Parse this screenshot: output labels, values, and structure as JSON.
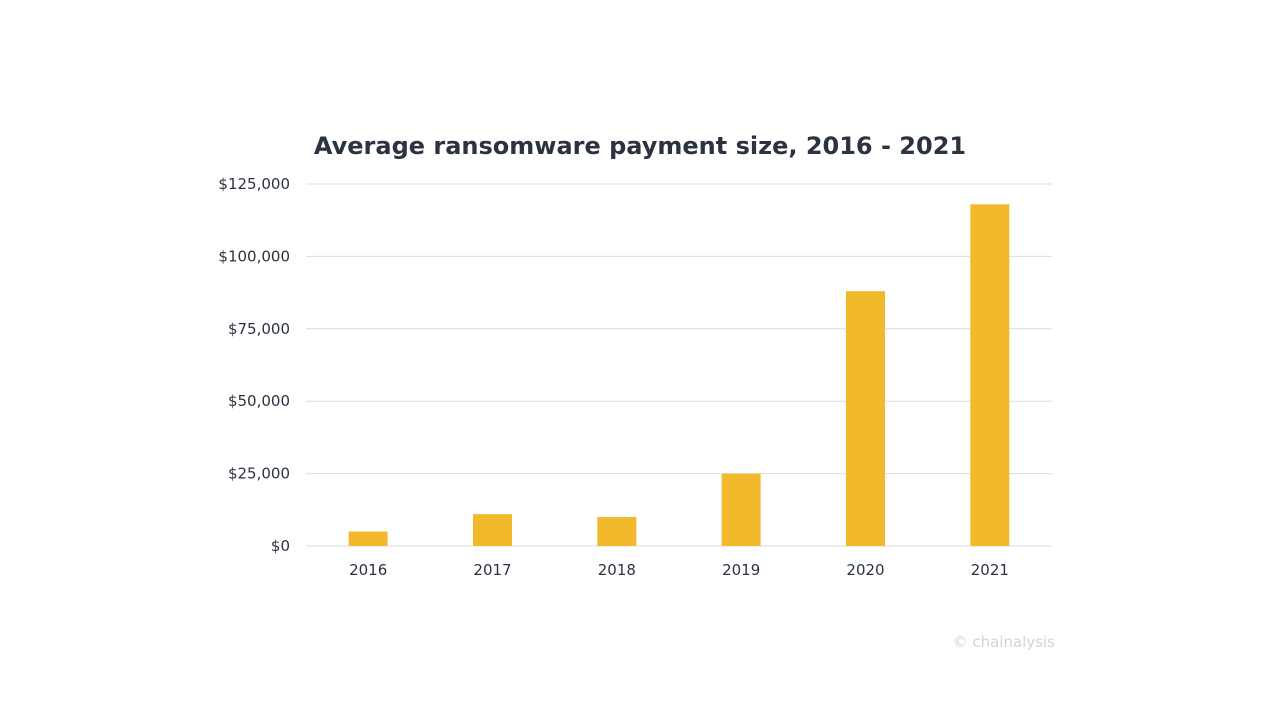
{
  "chart_data": {
    "type": "bar",
    "title": "Average ransomware payment size, 2016 - 2021",
    "categories": [
      "2016",
      "2017",
      "2018",
      "2019",
      "2020",
      "2021"
    ],
    "values": [
      5000,
      11000,
      10000,
      25000,
      88000,
      118000
    ],
    "y_tick_values": [
      0,
      25000,
      50000,
      75000,
      100000,
      125000
    ],
    "y_tick_labels": [
      "$0",
      "$25,000",
      "$50,000",
      "$75,000",
      "$100,000",
      "$125,000"
    ],
    "ylim": [
      0,
      125000
    ],
    "xlabel": "",
    "ylabel": "",
    "grid": true,
    "legend": "none",
    "bar_color": "#f2b92c"
  },
  "credit": "© chainalysis"
}
